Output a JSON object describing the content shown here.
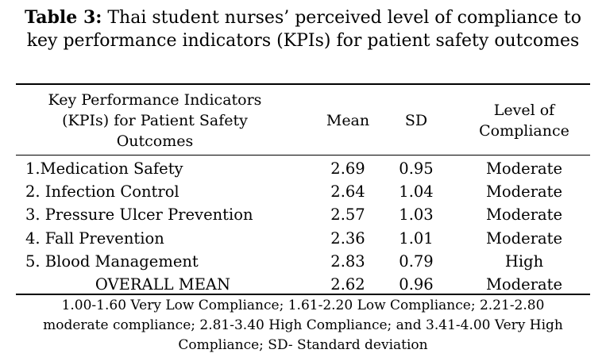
{
  "caption": {
    "label": "Table 3:",
    "text": " Thai student nurses’ perceived level of compliance to key performance indicators (KPIs) for patient safety outcomes"
  },
  "headers": {
    "kpi_line1": "Key Performance Indicators",
    "kpi_line2": "(KPIs) for Patient Safety",
    "kpi_line3": "Outcomes",
    "mean": "Mean",
    "sd": "SD",
    "level_line1": "Level of",
    "level_line2": "Compliance"
  },
  "rows": [
    {
      "kpi": "1.Medication Safety",
      "mean": "2.69",
      "sd": "0.95",
      "level": "Moderate"
    },
    {
      "kpi": "2. Infection Control",
      "mean": "2.64",
      "sd": "1.04",
      "level": "Moderate"
    },
    {
      "kpi": "3. Pressure Ulcer Prevention",
      "mean": "2.57",
      "sd": "1.03",
      "level": "Moderate"
    },
    {
      "kpi": "4. Fall Prevention",
      "mean": "2.36",
      "sd": "1.01",
      "level": "Moderate"
    },
    {
      "kpi": "5. Blood Management",
      "mean": "2.83",
      "sd": "0.79",
      "level": "High"
    },
    {
      "kpi": "OVERALL MEAN",
      "mean": "2.62",
      "sd": "0.96",
      "level": "Moderate"
    }
  ],
  "note": {
    "line1": "1.00-1.60 Very Low Compliance; 1.61-2.20 Low Compliance; 2.21-2.80",
    "line2": "moderate compliance; 2.81-3.40 High Compliance; and 3.41-4.00 Very High",
    "line3": "Compliance; SD- Standard deviation"
  }
}
